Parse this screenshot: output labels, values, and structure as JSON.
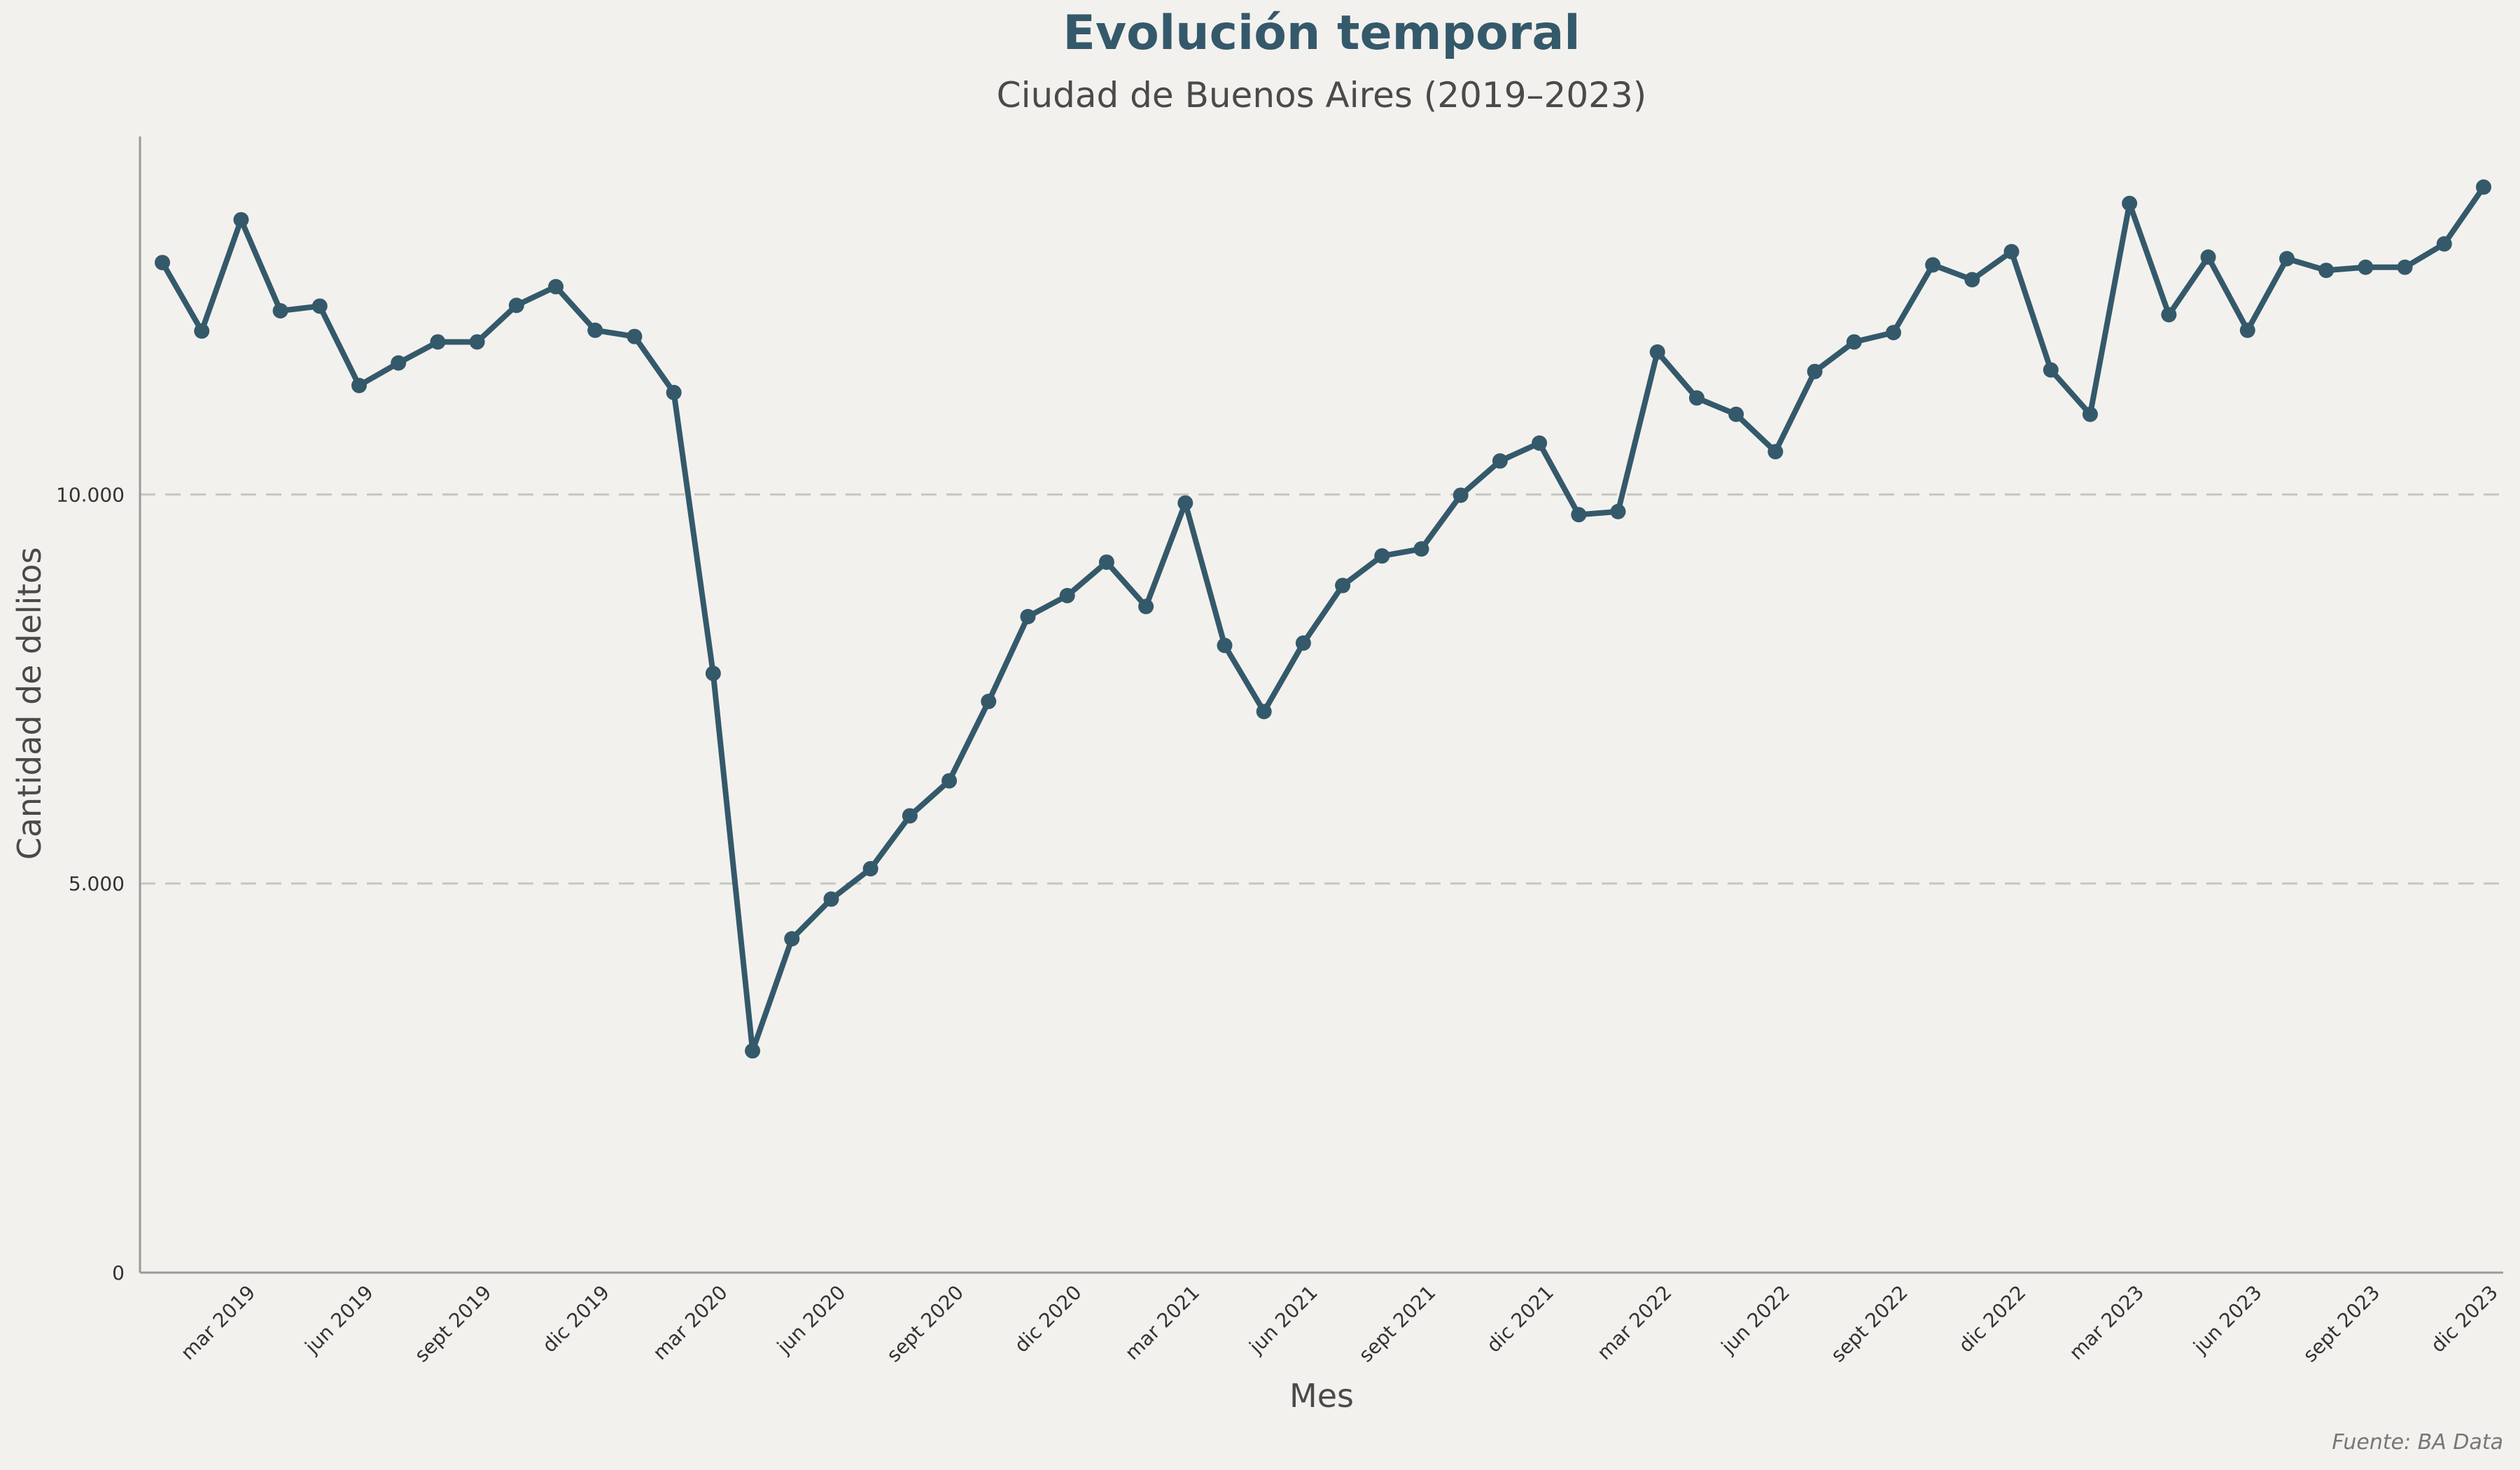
{
  "chart_data": {
    "type": "line",
    "title": "Evolución temporal",
    "subtitle": "Ciudad de Buenos Aires (2019–2023)",
    "xlabel": "Mes",
    "ylabel": "Cantidad de delitos",
    "source": "Fuente: BA Data",
    "ylim": [
      0,
      14600
    ],
    "yticks": [
      0,
      5000,
      10000
    ],
    "ytick_labels": [
      "0",
      "5.000",
      "10.000"
    ],
    "grid": "horizontal dashed",
    "line_color": "#34596b",
    "xtick_labels": [
      "mar 2019",
      "jun 2019",
      "sept 2019",
      "dic 2019",
      "mar 2020",
      "jun 2020",
      "sept 2020",
      "dic 2020",
      "mar 2021",
      "jun 2021",
      "sept 2021",
      "dic 2021",
      "mar 2022",
      "jun 2022",
      "sept 2022",
      "dic 2022",
      "mar 2023",
      "jun 2023",
      "sept 2023",
      "dic 2023"
    ],
    "x": [
      "2019-01",
      "2019-02",
      "2019-03",
      "2019-04",
      "2019-05",
      "2019-06",
      "2019-07",
      "2019-08",
      "2019-09",
      "2019-10",
      "2019-11",
      "2019-12",
      "2020-01",
      "2020-02",
      "2020-03",
      "2020-04",
      "2020-05",
      "2020-06",
      "2020-07",
      "2020-08",
      "2020-09",
      "2020-10",
      "2020-11",
      "2020-12",
      "2021-01",
      "2021-02",
      "2021-03",
      "2021-04",
      "2021-05",
      "2021-06",
      "2021-07",
      "2021-08",
      "2021-09",
      "2021-10",
      "2021-11",
      "2021-12",
      "2022-01",
      "2022-02",
      "2022-03",
      "2022-04",
      "2022-05",
      "2022-06",
      "2022-07",
      "2022-08",
      "2022-09",
      "2022-10",
      "2022-11",
      "2022-12",
      "2023-01",
      "2023-02",
      "2023-03",
      "2023-04",
      "2023-05",
      "2023-06",
      "2023-07",
      "2023-08",
      "2023-09",
      "2023-10",
      "2023-11",
      "2023-12"
    ],
    "values": [
      12980,
      12100,
      13530,
      12360,
      12420,
      11400,
      11690,
      11960,
      11960,
      12430,
      12670,
      12110,
      12030,
      11310,
      7700,
      2850,
      4290,
      4800,
      5190,
      5870,
      6320,
      7340,
      8430,
      8700,
      9130,
      8560,
      9890,
      8060,
      7210,
      8090,
      8830,
      9210,
      9300,
      9990,
      10430,
      10660,
      9740,
      9780,
      11830,
      11240,
      11030,
      10550,
      11580,
      11960,
      12080,
      12950,
      12760,
      13120,
      11600,
      11030,
      13740,
      12310,
      13050,
      12110,
      13030,
      12880,
      12920,
      12920,
      13220,
      13950
    ]
  }
}
